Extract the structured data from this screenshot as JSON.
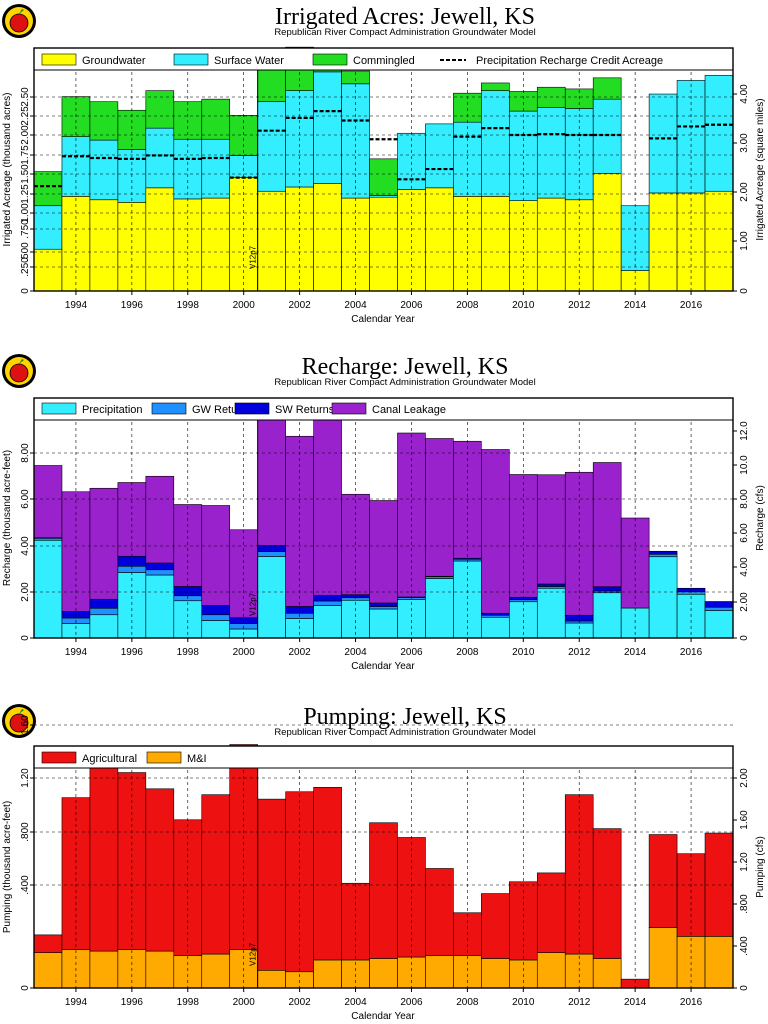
{
  "subtitle": "Republican River Compact Administration Groundwater Model",
  "x_axis_label": "Calendar Year",
  "version_tag": "V12p7",
  "colors": {
    "groundwater": "#ffff00",
    "surface_water": "#33eeff",
    "commingled": "#22dd22",
    "precipitation": "#33eeff",
    "gw_returns": "#1e90ff",
    "sw_returns": "#0000dd",
    "canal_leakage": "#9922cc",
    "agricultural": "#ee1111",
    "mi": "#ffaa00"
  },
  "chart_data": [
    {
      "type": "bar",
      "stacked": true,
      "title": "Irrigated Acres: Jewell, KS",
      "subtitle": "Republican River Compact Administration Groundwater Model",
      "xlabel": "Calendar Year",
      "ylabel": "Irrigated Acreage (thousand acres)",
      "y2label": "Irrigated Acreage (square miles)",
      "categories": [
        1993,
        1994,
        1995,
        1996,
        1997,
        1998,
        1999,
        2000,
        2001,
        2002,
        2003,
        2004,
        2005,
        2006,
        2007,
        2008,
        2009,
        2010,
        2011,
        2012,
        2013,
        2014,
        2015,
        2016,
        2017
      ],
      "x_tick_labels": [
        "1994",
        "1996",
        "1998",
        "2000",
        "2002",
        "2004",
        "2006",
        "2008",
        "2010",
        "2012",
        "2014",
        "2016"
      ],
      "ylim": [
        0,
        2.85
      ],
      "y_ticks": [
        "0",
        ".250",
        ".500",
        ".750",
        "1.00",
        "1.25",
        "1.50",
        "1.75",
        "2.00",
        "2.25",
        "2.50"
      ],
      "y2lim": [
        0,
        4.45
      ],
      "y2_ticks": [
        "0",
        "1.00",
        "2.00",
        "3.00",
        "4.00"
      ],
      "grid": true,
      "legend_position": "top",
      "series": [
        {
          "name": "Groundwater",
          "color": "#ffff00",
          "values": [
            0.49,
            1.11,
            1.07,
            1.04,
            1.21,
            1.08,
            1.09,
            1.33,
            1.17,
            1.22,
            1.26,
            1.09,
            1.1,
            1.19,
            1.21,
            1.11,
            1.11,
            1.06,
            1.09,
            1.07,
            1.38,
            0.24,
            1.15,
            1.15,
            1.17
          ]
        },
        {
          "name": "Surface Water",
          "color": "#33eeff",
          "values": [
            0.51,
            0.7,
            0.7,
            0.62,
            0.7,
            0.7,
            0.69,
            0.26,
            1.05,
            1.13,
            1.31,
            1.34,
            0.02,
            0.66,
            0.75,
            0.87,
            1.24,
            1.05,
            1.06,
            1.07,
            0.87,
            0.76,
            1.16,
            1.32,
            1.36
          ]
        },
        {
          "name": "Commingled",
          "color": "#22dd22",
          "values": [
            0.4,
            0.47,
            0.45,
            0.46,
            0.44,
            0.44,
            0.47,
            0.47,
            0.48,
            0.51,
            0.09,
            0.15,
            0.43,
            0.0,
            0.0,
            0.34,
            0.09,
            0.23,
            0.24,
            0.23,
            0.25,
            0.0,
            0.0,
            0.0,
            0.0
          ]
        }
      ],
      "overlay_line": {
        "name": "Precipitation Recharge Credit Acreage",
        "style": "dashed",
        "values": [
          1.23,
          1.58,
          1.56,
          1.55,
          1.59,
          1.55,
          1.56,
          1.33,
          1.88,
          2.03,
          2.11,
          2.0,
          1.78,
          1.31,
          1.43,
          1.81,
          1.91,
          1.83,
          1.84,
          1.83,
          1.83,
          0.0,
          1.79,
          1.93,
          1.95
        ]
      }
    },
    {
      "type": "bar",
      "stacked": true,
      "title": "Recharge: Jewell, KS",
      "subtitle": "Republican River Compact Administration Groundwater Model",
      "xlabel": "Calendar Year",
      "ylabel": "Recharge (thousand acre-feet)",
      "y2label": "Recharge (cfs)",
      "categories": [
        1993,
        1994,
        1995,
        1996,
        1997,
        1998,
        1999,
        2000,
        2001,
        2002,
        2003,
        2004,
        2005,
        2006,
        2007,
        2008,
        2009,
        2010,
        2011,
        2012,
        2013,
        2014,
        2015,
        2016,
        2017
      ],
      "x_tick_labels": [
        "1994",
        "1996",
        "1998",
        "2000",
        "2002",
        "2004",
        "2006",
        "2008",
        "2010",
        "2012",
        "2014",
        "2016"
      ],
      "ylim": [
        0,
        9.6
      ],
      "y_ticks": [
        "0",
        "2.00",
        "4.00",
        "6.00",
        "8.00"
      ],
      "y2lim": [
        0,
        13.25
      ],
      "y2_ticks": [
        "0",
        "2.00",
        "4.00",
        "6.00",
        "8.00",
        "10.0",
        "12.0"
      ],
      "grid": true,
      "legend_position": "top",
      "series": [
        {
          "name": "Precipitation",
          "color": "#33eeff",
          "values": [
            3.91,
            0.58,
            0.93,
            2.62,
            2.52,
            1.49,
            0.7,
            0.36,
            3.26,
            0.78,
            1.3,
            1.51,
            1.16,
            1.54,
            2.38,
            3.08,
            0.83,
            1.45,
            1.99,
            0.6,
            1.81,
            1.2,
            3.25,
            1.75,
            1.1
          ]
        },
        {
          "name": "GW Returns",
          "color": "#1e90ff",
          "values": [
            0.08,
            0.22,
            0.26,
            0.25,
            0.21,
            0.2,
            0.23,
            0.22,
            0.2,
            0.21,
            0.18,
            0.1,
            0.1,
            0.08,
            0.07,
            0.07,
            0.08,
            0.08,
            0.07,
            0.08,
            0.07,
            0.0,
            0.1,
            0.1,
            0.13
          ]
        },
        {
          "name": "SW Returns",
          "color": "#0000dd",
          "values": [
            0.02,
            0.26,
            0.36,
            0.4,
            0.27,
            0.37,
            0.37,
            0.23,
            0.24,
            0.27,
            0.22,
            0.12,
            0.14,
            0.02,
            0.02,
            0.04,
            0.08,
            0.1,
            0.1,
            0.23,
            0.17,
            0.0,
            0.12,
            0.14,
            0.23
          ]
        },
        {
          "name": "Canal Leakage",
          "color": "#9922cc",
          "values": [
            2.89,
            4.79,
            4.44,
            2.95,
            3.47,
            3.28,
            4.0,
            3.52,
            5.29,
            6.81,
            7.02,
            4.02,
            4.1,
            6.56,
            5.51,
            4.68,
            6.55,
            4.91,
            4.37,
            5.72,
            4.97,
            3.6,
            0.0,
            0.0,
            0.0
          ]
        }
      ]
    },
    {
      "type": "bar",
      "stacked": true,
      "title": "Pumping: Jewell, KS",
      "subtitle": "Republican River Compact Administration Groundwater Model",
      "xlabel": "Calendar Year",
      "ylabel": "Pumping (thousand acre-feet)",
      "y2label": "Pumping (cfs)",
      "categories": [
        1993,
        1994,
        1995,
        1996,
        1997,
        1998,
        1999,
        2000,
        2001,
        2002,
        2003,
        2004,
        2005,
        2006,
        2007,
        2008,
        2009,
        2010,
        2011,
        2012,
        2013,
        2014,
        2015,
        2016,
        2017
      ],
      "x_tick_labels": [
        "1994",
        "1996",
        "1998",
        "2000",
        "2002",
        "2004",
        "2006",
        "2008",
        "2010",
        "2012",
        "2014",
        "2016"
      ],
      "ylim": [
        0,
        1.64
      ],
      "y_ticks": [
        "0",
        ".400",
        ".800",
        "1.20",
        "1.60"
      ],
      "y2lim": [
        0,
        2.27
      ],
      "y2_ticks": [
        "0",
        ".400",
        ".800",
        "1.20",
        "1.60",
        "2.00"
      ],
      "grid": true,
      "legend_position": "top",
      "series": [
        {
          "name": "M&I",
          "color": "#ffaa00",
          "values": [
            0.24,
            0.26,
            0.25,
            0.26,
            0.25,
            0.22,
            0.23,
            0.26,
            0.12,
            0.11,
            0.19,
            0.19,
            0.2,
            0.21,
            0.22,
            0.22,
            0.2,
            0.19,
            0.24,
            0.23,
            0.2,
            0.0,
            0.41,
            0.35,
            0.35
          ]
        },
        {
          "name": "Agricultural",
          "color": "#ee1111",
          "values": [
            0.12,
            1.03,
            1.24,
            1.2,
            1.1,
            0.92,
            1.08,
            1.39,
            1.16,
            1.22,
            1.17,
            0.52,
            0.92,
            0.81,
            0.59,
            0.29,
            0.44,
            0.53,
            0.54,
            1.08,
            0.88,
            0.06,
            0.63,
            0.56,
            0.7
          ]
        }
      ]
    }
  ]
}
